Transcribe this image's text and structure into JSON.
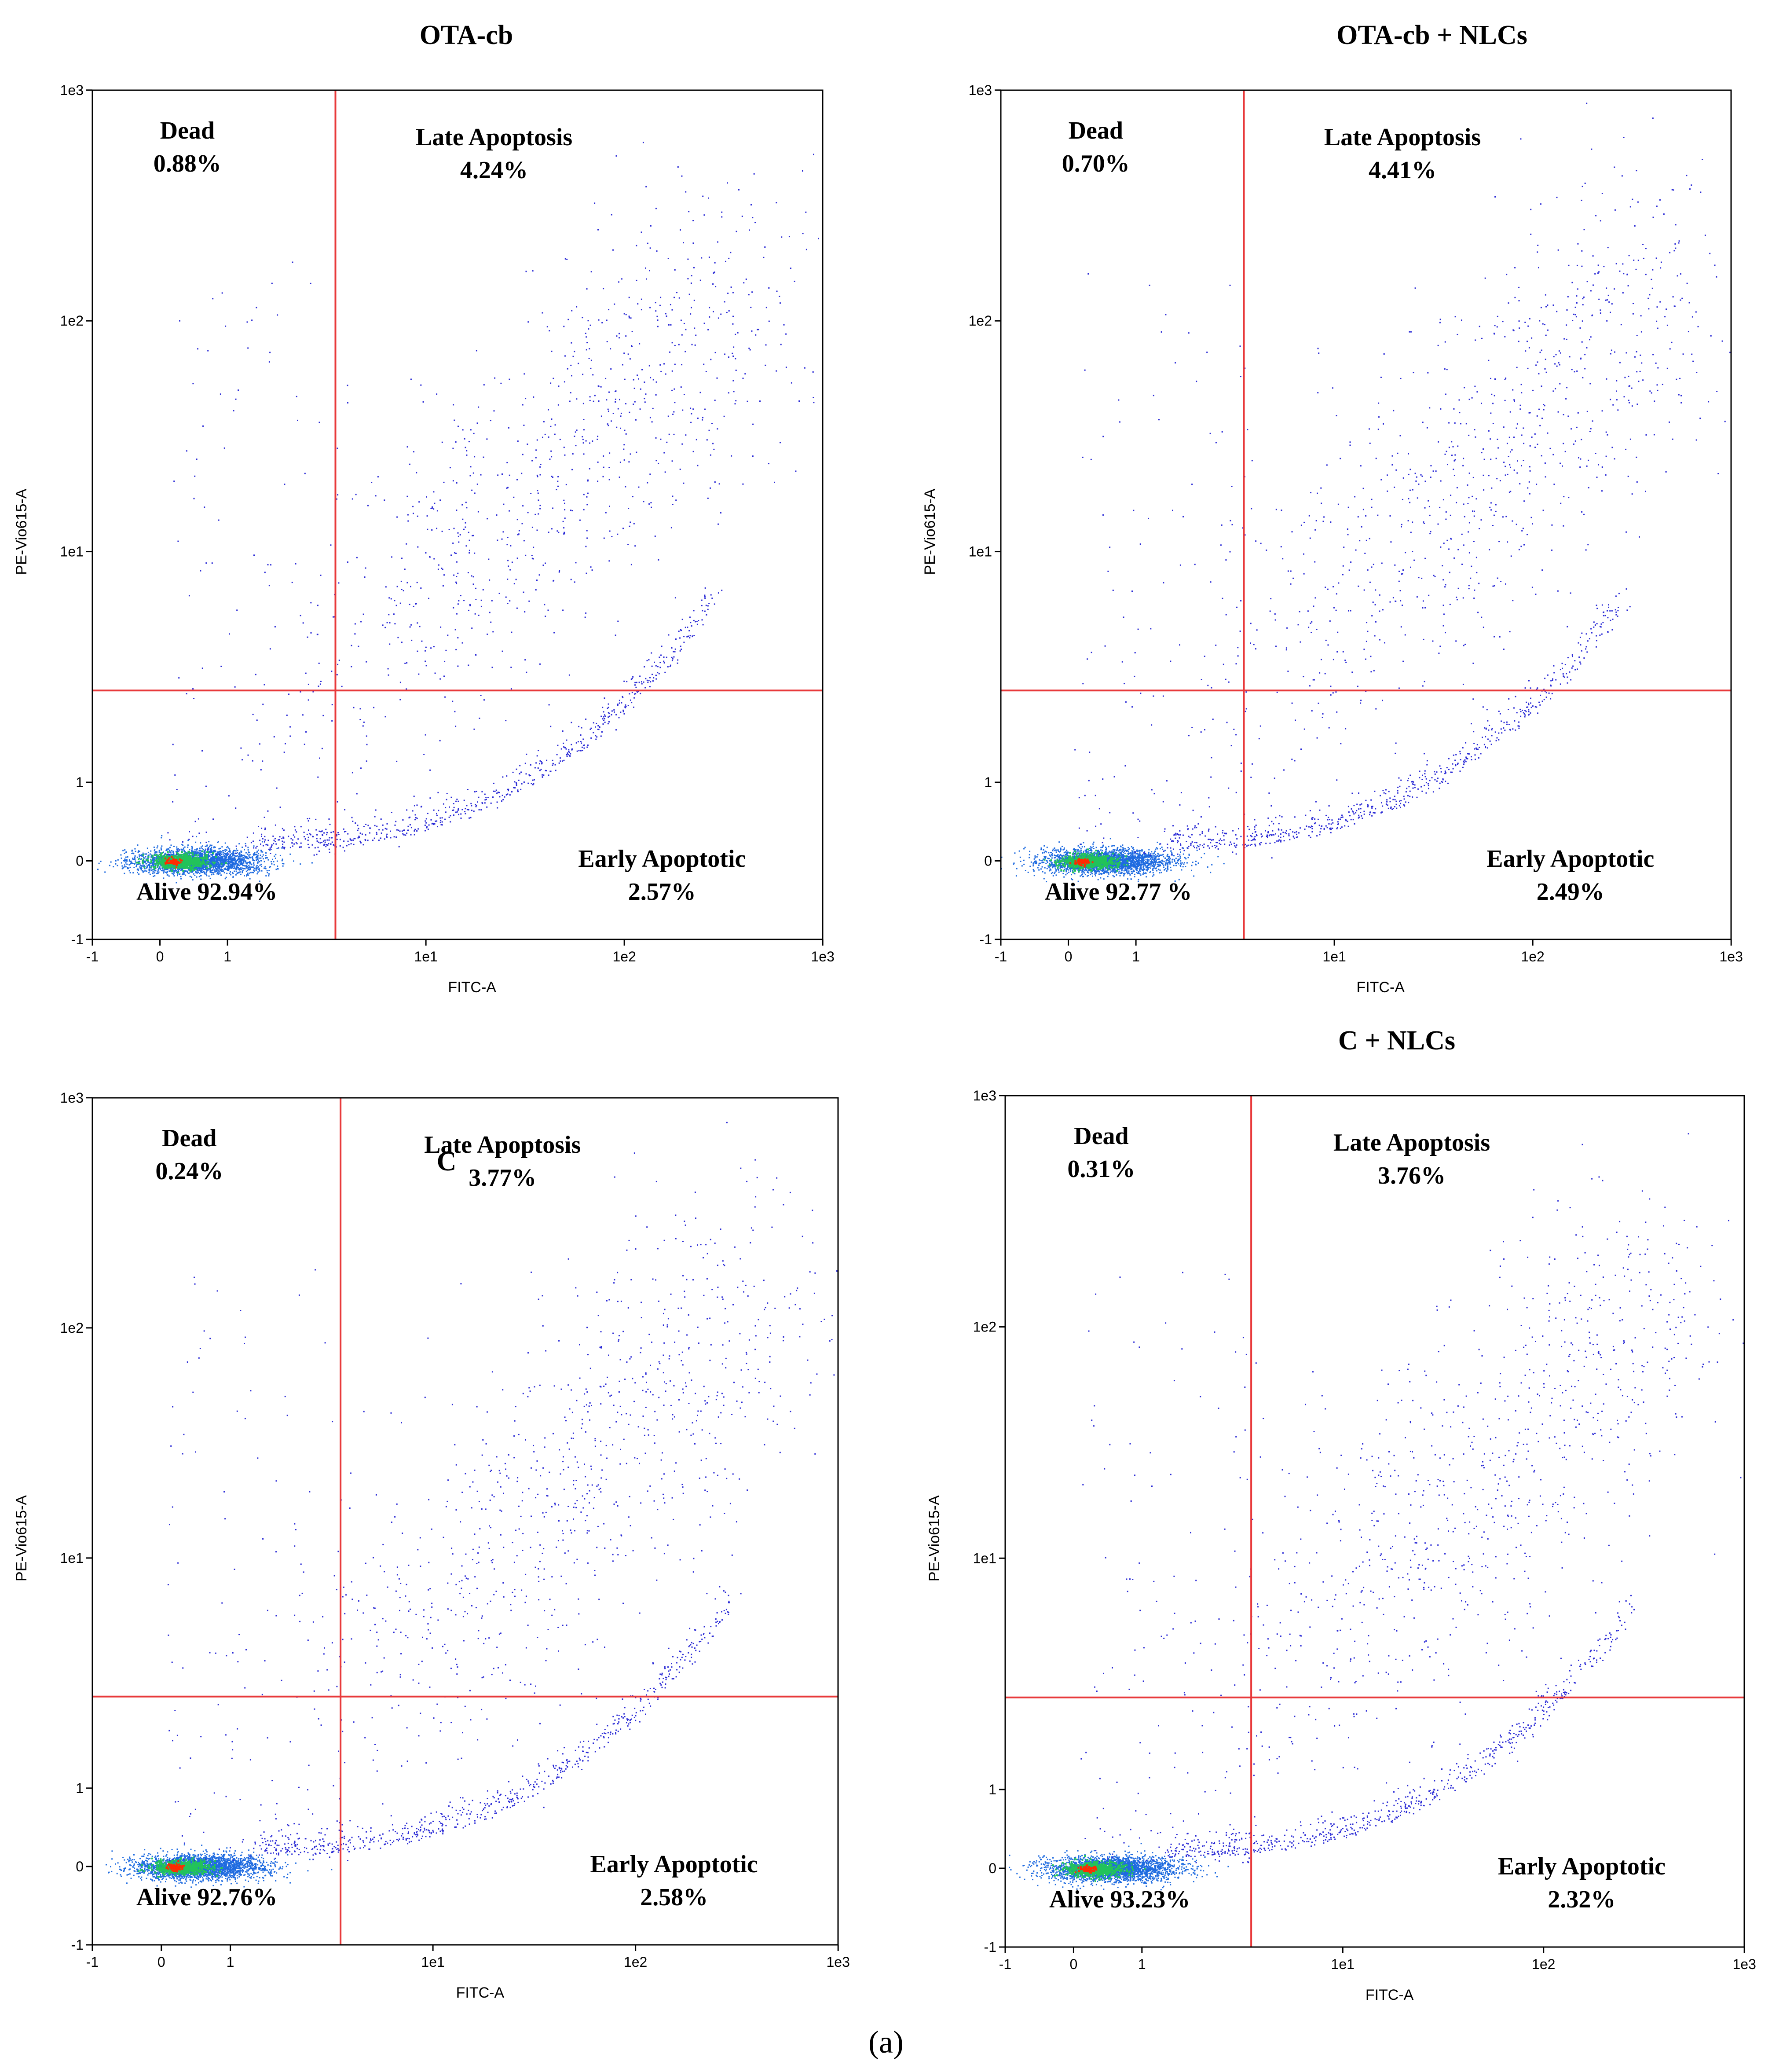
{
  "figure_label": "(a)",
  "chart_data": [
    {
      "type": "scatter",
      "title": "OTA-cb",
      "xlabel": "FITC-A",
      "ylabel": "PE-Vio615-A",
      "xticks": [
        "-1",
        "0",
        "1",
        "1e1",
        "1e2",
        "1e3"
      ],
      "yticks": [
        "-1",
        "0",
        "1",
        "1e1",
        "1e2",
        "1e3"
      ],
      "gate_x": 3.5,
      "gate_y": 2.5,
      "quadrants": {
        "dead": {
          "name": "Dead",
          "value": "0.88%"
        },
        "late": {
          "name": "Late Apoptosis",
          "value": "4.24%"
        },
        "alive": {
          "text": "Alive 92.94%"
        },
        "early": {
          "name": "Early Apoptotic",
          "value": "2.57%"
        }
      }
    },
    {
      "type": "scatter",
      "title": "OTA-cb + NLCs",
      "xlabel": "FITC-A",
      "ylabel": "PE-Vio615-A",
      "xticks": [
        "-1",
        "0",
        "1",
        "1e1",
        "1e2",
        "1e3"
      ],
      "yticks": [
        "-1",
        "0",
        "1",
        "1e1",
        "1e2",
        "1e3"
      ],
      "gate_x": 3.5,
      "gate_y": 2.5,
      "quadrants": {
        "dead": {
          "name": "Dead",
          "value": "0.70%"
        },
        "late": {
          "name": "Late Apoptosis",
          "value": "4.41%"
        },
        "alive": {
          "text": "Alive 92.77 %"
        },
        "early": {
          "name": "Early Apoptotic",
          "value": "2.49%"
        }
      }
    },
    {
      "type": "scatter",
      "title": "C",
      "xlabel": "FITC-A",
      "ylabel": "PE-Vio615-A",
      "xticks": [
        "-1",
        "0",
        "1",
        "1e1",
        "1e2",
        "1e3"
      ],
      "yticks": [
        "-1",
        "0",
        "1",
        "1e1",
        "1e2",
        "1e3"
      ],
      "gate_x": 3.5,
      "gate_y": 2.5,
      "quadrants": {
        "dead": {
          "name": "Dead",
          "value": "0.24%"
        },
        "late": {
          "name": "Late Apoptosis",
          "value": "3.77%"
        },
        "alive": {
          "text": "Alive 92.76%"
        },
        "early": {
          "name": "Early Apoptotic",
          "value": "2.58%"
        }
      }
    },
    {
      "type": "scatter",
      "title": "C + NLCs",
      "xlabel": "FITC-A",
      "ylabel": "PE-Vio615-A",
      "xticks": [
        "-1",
        "0",
        "1",
        "1e1",
        "1e2",
        "1e3"
      ],
      "yticks": [
        "-1",
        "0",
        "1",
        "1e1",
        "1e2",
        "1e3"
      ],
      "gate_x": 3.5,
      "gate_y": 2.5,
      "quadrants": {
        "dead": {
          "name": "Dead",
          "value": "0.31%"
        },
        "late": {
          "name": "Late Apoptosis",
          "value": "3.76%"
        },
        "alive": {
          "text": "Alive 93.23%"
        },
        "early": {
          "name": "Early Apoptotic",
          "value": "2.32%"
        }
      }
    }
  ],
  "colors": {
    "gate": "#e8393a",
    "dots": "#2b2bd6",
    "frame": "#000000",
    "density_high": "#ff2a00",
    "density_mid": "#22c35a",
    "density_low": "#1f6be0"
  }
}
